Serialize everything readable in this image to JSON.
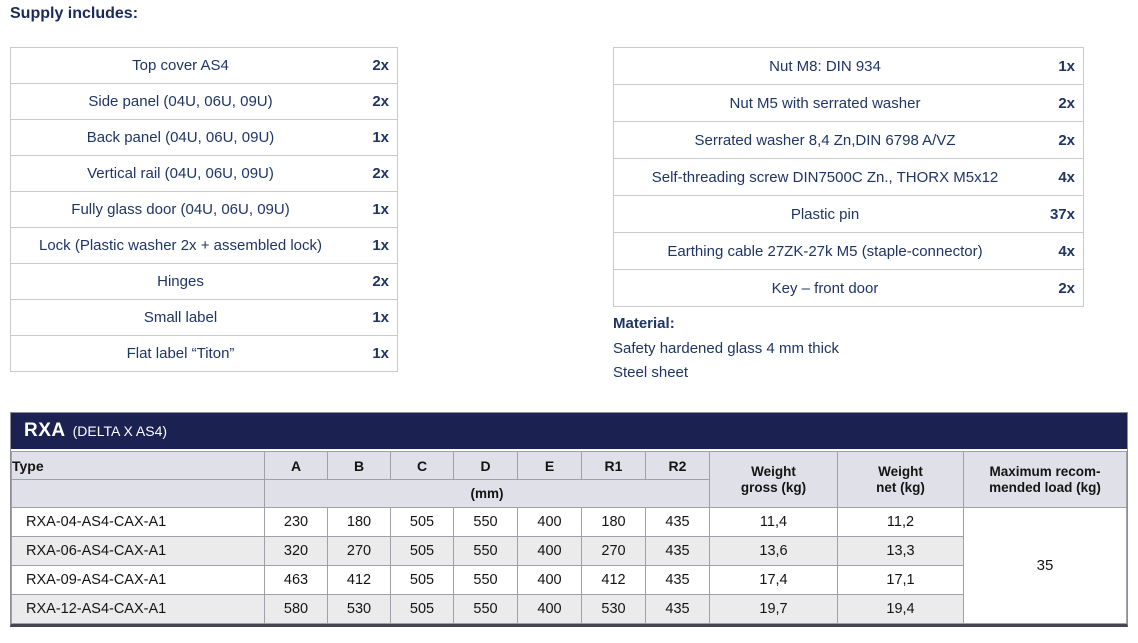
{
  "headings": {
    "supply": "Supply includes:",
    "material": "Material:"
  },
  "material_lines": [
    "Safety hardened glass 4 mm thick",
    "Steel sheet"
  ],
  "supply_left": [
    {
      "item": "Top cover AS4",
      "qty": "2x"
    },
    {
      "item": "Side panel (04U, 06U, 09U)",
      "qty": "2x"
    },
    {
      "item": "Back panel (04U, 06U, 09U)",
      "qty": "1x"
    },
    {
      "item": "Vertical rail (04U, 06U, 09U)",
      "qty": "2x"
    },
    {
      "item": "Fully glass door (04U, 06U, 09U)",
      "qty": "1x"
    },
    {
      "item": "Lock (Plastic washer 2x + assembled lock)",
      "qty": "1x"
    },
    {
      "item": "Hinges",
      "qty": "2x"
    },
    {
      "item": "Small label",
      "qty": "1x"
    },
    {
      "item": "Flat label “Titon”",
      "qty": "1x"
    }
  ],
  "supply_right": [
    {
      "item": "Nut M8: DIN 934",
      "qty": "1x"
    },
    {
      "item": "Nut M5 with serrated washer",
      "qty": "2x"
    },
    {
      "item": "Serrated washer 8,4 Zn,DIN 6798 A/VZ",
      "qty": "2x"
    },
    {
      "item": "Self-threading screw DIN7500C Zn., THORX M5x12",
      "qty": "4x"
    },
    {
      "item": "Plastic pin",
      "qty": "37x"
    },
    {
      "item": "Earthing cable 27ZK-27k M5 (staple-connector)",
      "qty": "4x"
    },
    {
      "item": "Key – front door",
      "qty": "2x"
    }
  ],
  "spec_table": {
    "title": "RXA",
    "subtitle": "(DELTA X AS4)",
    "type_header": "Type",
    "dim_headers": [
      "A",
      "B",
      "C",
      "D",
      "E",
      "R1",
      "R2"
    ],
    "unit_row_label": "(mm)",
    "weight_gross_header": "Weight\ngross (kg)",
    "weight_net_header": "Weight\nnet (kg)",
    "max_load_header": "Maximum recom-\nmended load (kg)",
    "max_load_value": "35",
    "rows": [
      {
        "type": "RXA-04-AS4-CAX-A1",
        "dims": [
          "230",
          "180",
          "505",
          "550",
          "400",
          "180",
          "435"
        ],
        "weight_gross": "11,4",
        "weight_net": "11,2"
      },
      {
        "type": "RXA-06-AS4-CAX-A1",
        "dims": [
          "320",
          "270",
          "505",
          "550",
          "400",
          "270",
          "435"
        ],
        "weight_gross": "13,6",
        "weight_net": "13,3"
      },
      {
        "type": "RXA-09-AS4-CAX-A1",
        "dims": [
          "463",
          "412",
          "505",
          "550",
          "400",
          "412",
          "435"
        ],
        "weight_gross": "17,4",
        "weight_net": "17,1"
      },
      {
        "type": "RXA-12-AS4-CAX-A1",
        "dims": [
          "580",
          "530",
          "505",
          "550",
          "400",
          "530",
          "435"
        ],
        "weight_gross": "19,7",
        "weight_net": "19,4"
      }
    ]
  },
  "colors": {
    "accent_navy": "#1b2150",
    "text_navy": "#1e3565",
    "header_bg": "#e0e0e9",
    "alt_row_bg": "#ebebeb"
  }
}
